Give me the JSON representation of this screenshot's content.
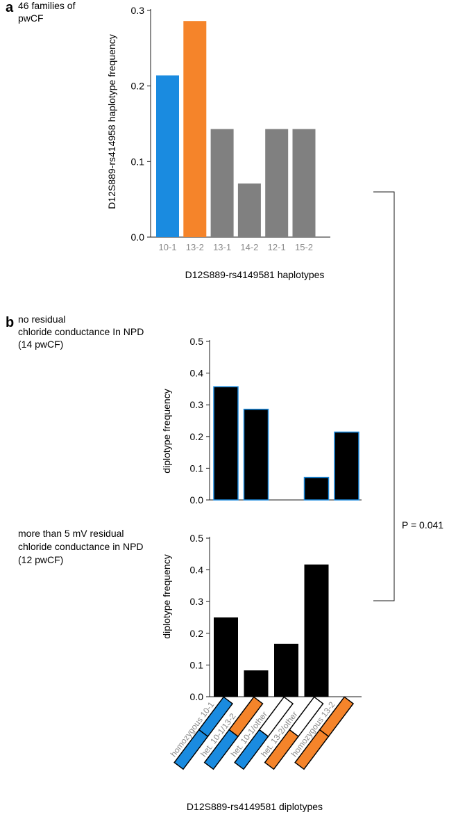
{
  "panel_a": {
    "letter": "a",
    "caption_lines": [
      "46 families of",
      "pwCF"
    ]
  },
  "panel_b": {
    "letter": "b",
    "caption_top_lines": [
      "no residual",
      "chloride conductance  In NPD",
      "(14 pwCF)"
    ],
    "caption_bottom_lines": [
      "more than 5 mV residual",
      "chloride conductance in NPD",
      "(12 pwCF)"
    ],
    "p_value": "P = 0.041",
    "xlabel": "D12S889-rs4149581 diplotypes"
  },
  "colors": {
    "blue": "#1a8be0",
    "orange": "#f5842a",
    "gray": "#808080",
    "black": "#000000",
    "axis": "#1a1a1a",
    "tick_label_gray": "#8a8a8a"
  },
  "chart_data": [
    {
      "type": "bar",
      "categories": [
        "10-1",
        "13-2",
        "13-1",
        "14-2",
        "12-1",
        "15-2"
      ],
      "values": [
        0.214,
        0.286,
        0.143,
        0.071,
        0.143,
        0.143
      ],
      "bar_colors": [
        "#1a8be0",
        "#f5842a",
        "#808080",
        "#808080",
        "#808080",
        "#808080"
      ],
      "yticks": [
        "0.0",
        "0.1",
        "0.2",
        "0.3"
      ],
      "ylim": [
        0,
        0.3
      ],
      "xlabel": "D12S889-rs4149581 haplotypes",
      "ylabel": "D12S889-rs414958 haplotype frequency"
    },
    {
      "type": "bar",
      "categories": [
        "homozygous 10-1",
        "het. 10-1/13-2",
        "het. 10-1/other",
        "het. 13-2/other",
        "homozygous 13-2"
      ],
      "values": [
        0.357,
        0.286,
        0.0,
        0.071,
        0.214
      ],
      "yticks": [
        "0.0",
        "0.1",
        "0.2",
        "0.3",
        "0.4",
        "0.5"
      ],
      "ylim": [
        0,
        0.5
      ],
      "ylabel": "diplotype frequency"
    },
    {
      "type": "bar",
      "categories": [
        "homozygous 10-1",
        "het. 10-1/13-2",
        "het. 10-1/other",
        "het. 13-2/other",
        "homozygous 13-2"
      ],
      "values": [
        0.25,
        0.083,
        0.167,
        0.417,
        0.0
      ],
      "yticks": [
        "0.0",
        "0.1",
        "0.2",
        "0.3",
        "0.4",
        "0.5"
      ],
      "ylim": [
        0,
        0.5
      ],
      "ylabel": "diplotype frequency"
    }
  ],
  "diplotype_icons": [
    {
      "label": "homozygous 10-1",
      "left": "blue",
      "right": "blue"
    },
    {
      "label": "het. 10-1/13-2",
      "left": "blue",
      "right": "orange"
    },
    {
      "label": "het. 10-1/other",
      "left": "blue",
      "right": "white"
    },
    {
      "label": "het. 13-2/other",
      "left": "orange",
      "right": "white"
    },
    {
      "label": "homozygous 13-2",
      "left": "orange",
      "right": "orange"
    }
  ]
}
